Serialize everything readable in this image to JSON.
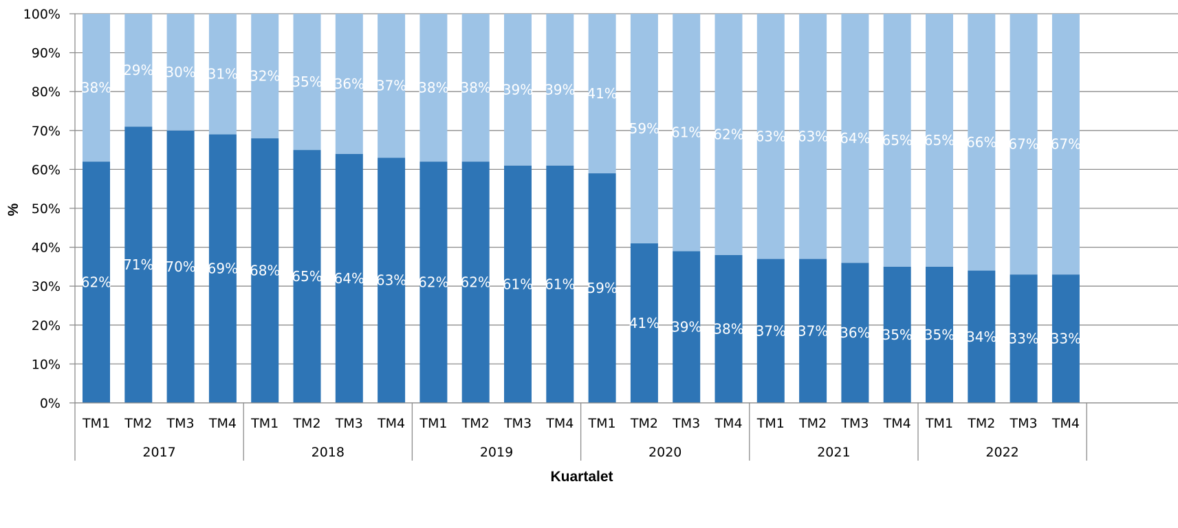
{
  "chart_data": {
    "type": "bar",
    "stacked": true,
    "percent_stacked": true,
    "groups": [
      "2017",
      "2018",
      "2019",
      "2020",
      "2021",
      "2022"
    ],
    "categories": [
      "TM1",
      "TM2",
      "TM3",
      "TM4",
      "TM1",
      "TM2",
      "TM3",
      "TM4",
      "TM1",
      "TM2",
      "TM3",
      "TM4",
      "TM1",
      "TM2",
      "TM3",
      "TM4",
      "TM1",
      "TM2",
      "TM3",
      "TM4",
      "TM1",
      "TM2",
      "TM3",
      "TM4"
    ],
    "series": [
      {
        "color": "#2e75b6",
        "values": [
          62,
          71,
          70,
          69,
          68,
          65,
          64,
          63,
          62,
          62,
          61,
          61,
          59,
          41,
          39,
          38,
          37,
          37,
          36,
          35,
          35,
          34,
          33,
          33
        ],
        "labels": [
          "62%",
          "71%",
          "70%",
          "69%",
          "68%",
          "65%",
          "64%",
          "63%",
          "62%",
          "62%",
          "61%",
          "61%",
          "59%",
          "41%",
          "39%",
          "38%",
          "37%",
          "37%",
          "36%",
          "35%",
          "35%",
          "34%",
          "33%",
          "33%"
        ]
      },
      {
        "color": "#9dc3e6",
        "values": [
          38,
          29,
          30,
          31,
          32,
          35,
          36,
          37,
          38,
          38,
          39,
          39,
          41,
          59,
          61,
          62,
          63,
          63,
          64,
          65,
          65,
          66,
          67,
          67
        ],
        "labels": [
          "38%",
          "29%",
          "30%",
          "31%",
          "32%",
          "35%",
          "36%",
          "37%",
          "38%",
          "38%",
          "39%",
          "39%",
          "41%",
          "59%",
          "61%",
          "62%",
          "63%",
          "63%",
          "64%",
          "65%",
          "65%",
          "66%",
          "67%",
          "67%"
        ]
      }
    ],
    "ylim": [
      0,
      100
    ],
    "yticks": [
      "0%",
      "10%",
      "20%",
      "30%",
      "40%",
      "50%",
      "60%",
      "70%",
      "80%",
      "90%",
      "100%"
    ],
    "xlabel": "Kuartalet",
    "ylabel": "%",
    "grid": true,
    "legend": "none"
  }
}
